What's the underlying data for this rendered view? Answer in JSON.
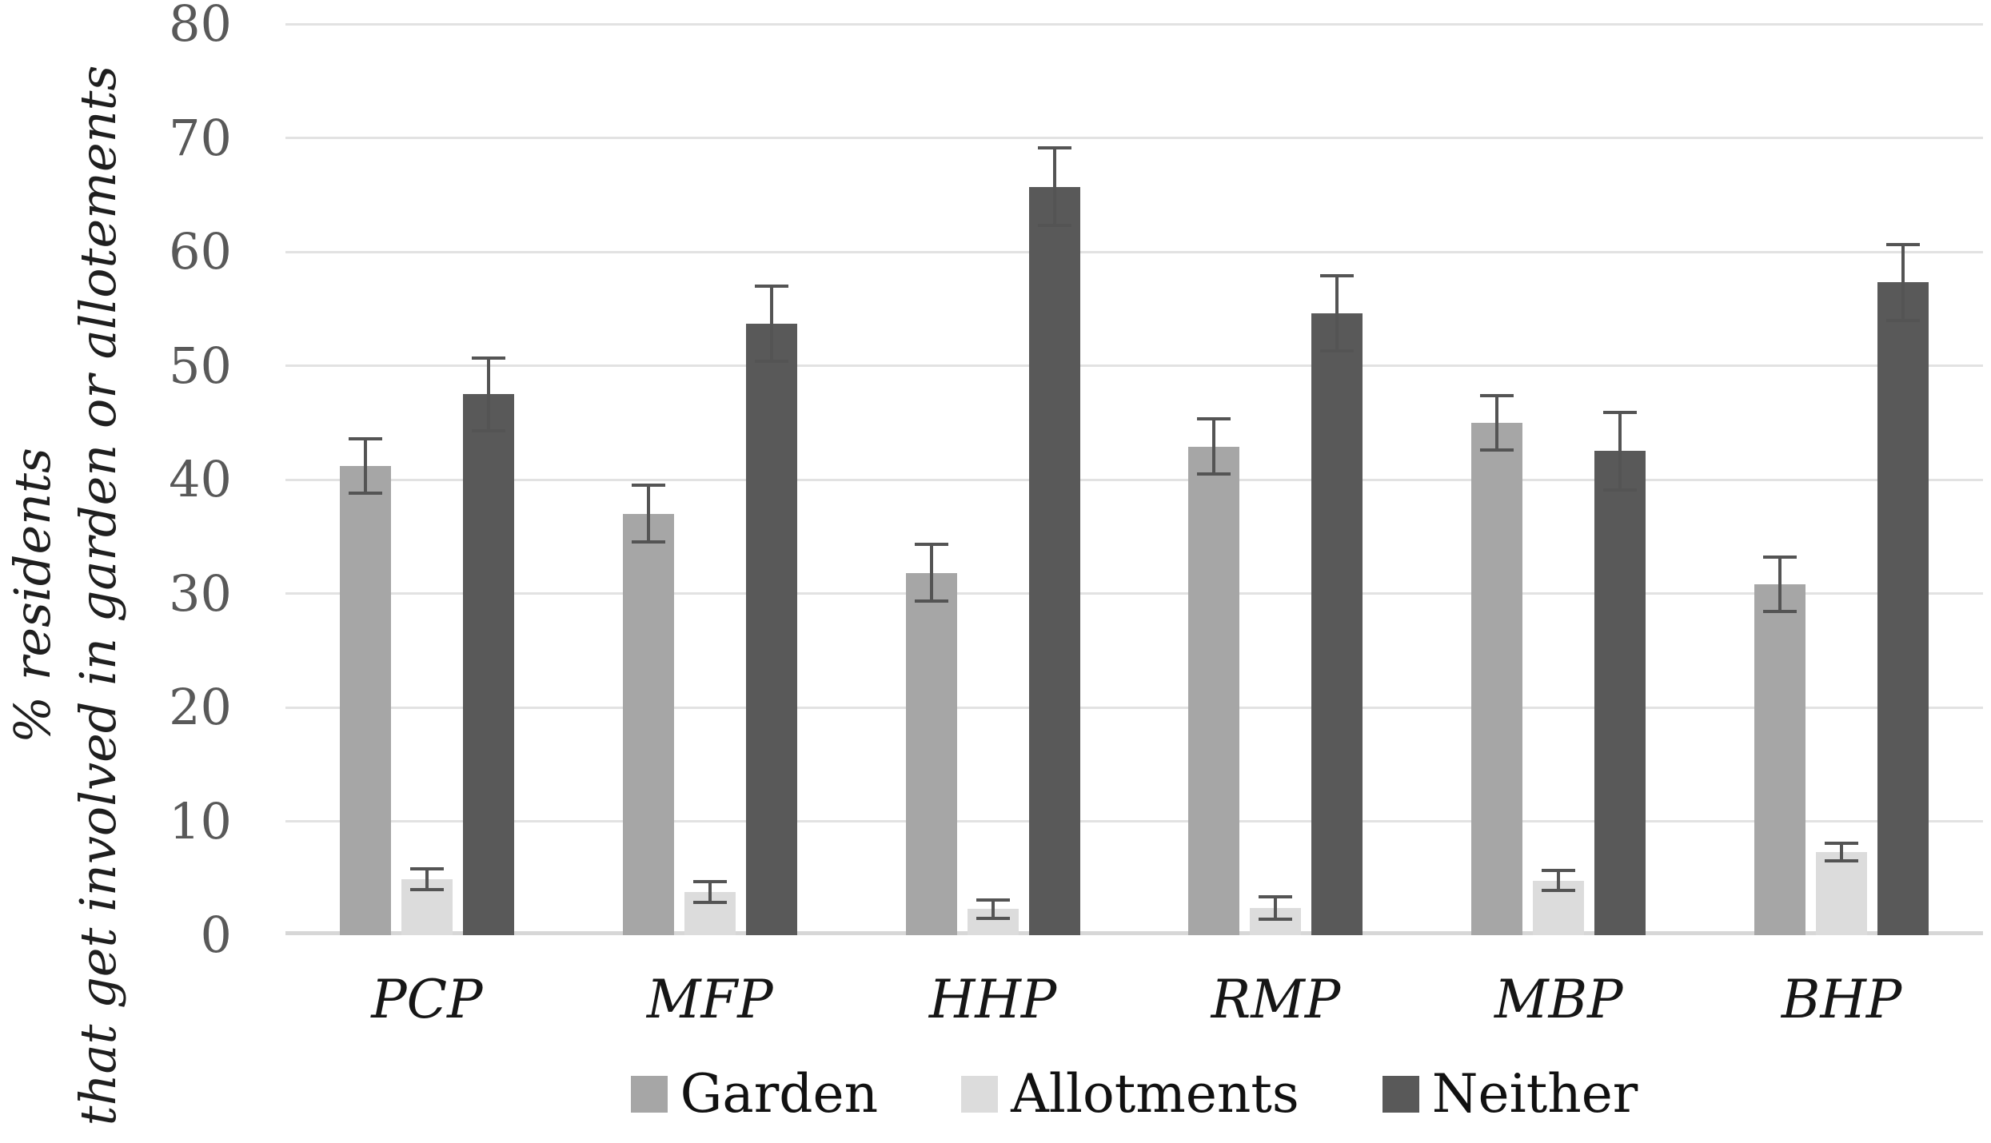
{
  "figure": {
    "background": "#ffffff",
    "tick_color": "#595959",
    "gridline_color": "#e2e2e2",
    "baseline_color": "#d7d7d7",
    "error_bar_color": "#545454",
    "text_color": "#1f1f1f"
  },
  "chart_data": {
    "type": "bar",
    "title": "",
    "xlabel": "",
    "ylabel_line1": "% residents",
    "ylabel_line2": "that get involved in garden or allotements",
    "categories": [
      "PCP",
      "MFP",
      "HHP",
      "RMP",
      "MBP",
      "BHP"
    ],
    "series": [
      {
        "name": "Garden",
        "color": "#a6a6a6",
        "values": [
          41.2,
          37.0,
          31.8,
          42.9,
          45.0,
          30.8
        ],
        "errors": [
          2.4,
          2.5,
          2.5,
          2.4,
          2.4,
          2.4
        ]
      },
      {
        "name": "Allotments",
        "color": "#dcdcdc",
        "values": [
          4.9,
          3.8,
          2.3,
          2.4,
          4.8,
          7.3
        ],
        "errors": [
          0.9,
          0.9,
          0.8,
          1.0,
          0.9,
          0.8
        ]
      },
      {
        "name": "Neither",
        "color": "#595959",
        "values": [
          47.5,
          53.7,
          65.7,
          54.6,
          42.5,
          57.3
        ],
        "errors": [
          3.2,
          3.3,
          3.4,
          3.3,
          3.4,
          3.3
        ]
      }
    ],
    "ylim": [
      0,
      80
    ],
    "ytick_step": 10,
    "yticks": [
      "0",
      "10",
      "20",
      "30",
      "40",
      "50",
      "60",
      "70",
      "80"
    ],
    "grid": true,
    "error_bars": true,
    "legend_position": "bottom"
  }
}
